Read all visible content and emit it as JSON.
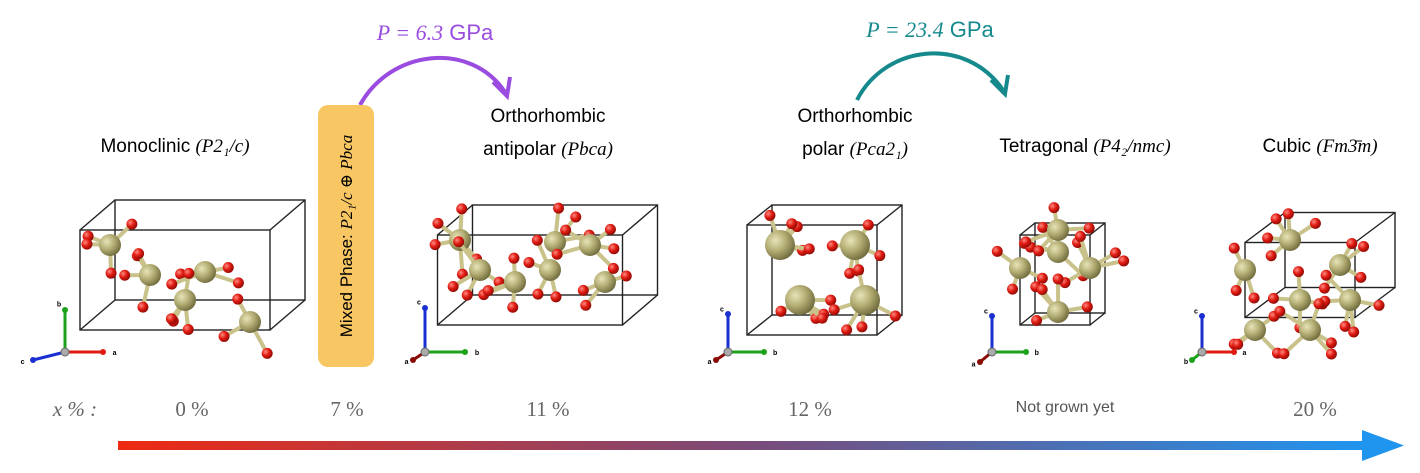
{
  "pressures": [
    {
      "lhs": "P = 6.3",
      "unit": "GPa",
      "color": "#9a4be0"
    },
    {
      "lhs": "P = 23.4",
      "unit": "GPa",
      "color": "#16898c"
    }
  ],
  "phases": [
    {
      "name": [
        "Monoclinic"
      ],
      "group": "(P2₁/c)",
      "axes": [
        "b",
        "c",
        "a"
      ]
    },
    {
      "name": [
        "Orthorhombic",
        "antipolar"
      ],
      "group": "(Pbca)",
      "axes": [
        "c",
        "a",
        "b"
      ]
    },
    {
      "name": [
        "Orthorhombic",
        "polar"
      ],
      "group": "(Pca2₁)",
      "axes": [
        "c",
        "a",
        "b"
      ]
    },
    {
      "name": [
        "Tetragonal"
      ],
      "group": "(P4₂/nmc)",
      "axes": [
        "c",
        "a",
        "b"
      ]
    },
    {
      "name": [
        "Cubic"
      ],
      "group": "(Fm3̄m)",
      "axes": [
        "c",
        "b",
        "a"
      ]
    }
  ],
  "mixed_phase": {
    "label": "Mixed Phase:",
    "group": "P2₁/c ⊕ Pbca"
  },
  "doping": {
    "label": "x % :",
    "values": [
      "0 %",
      "7 %",
      "11 %",
      "12 %",
      "Not grown yet",
      "20 %"
    ]
  }
}
